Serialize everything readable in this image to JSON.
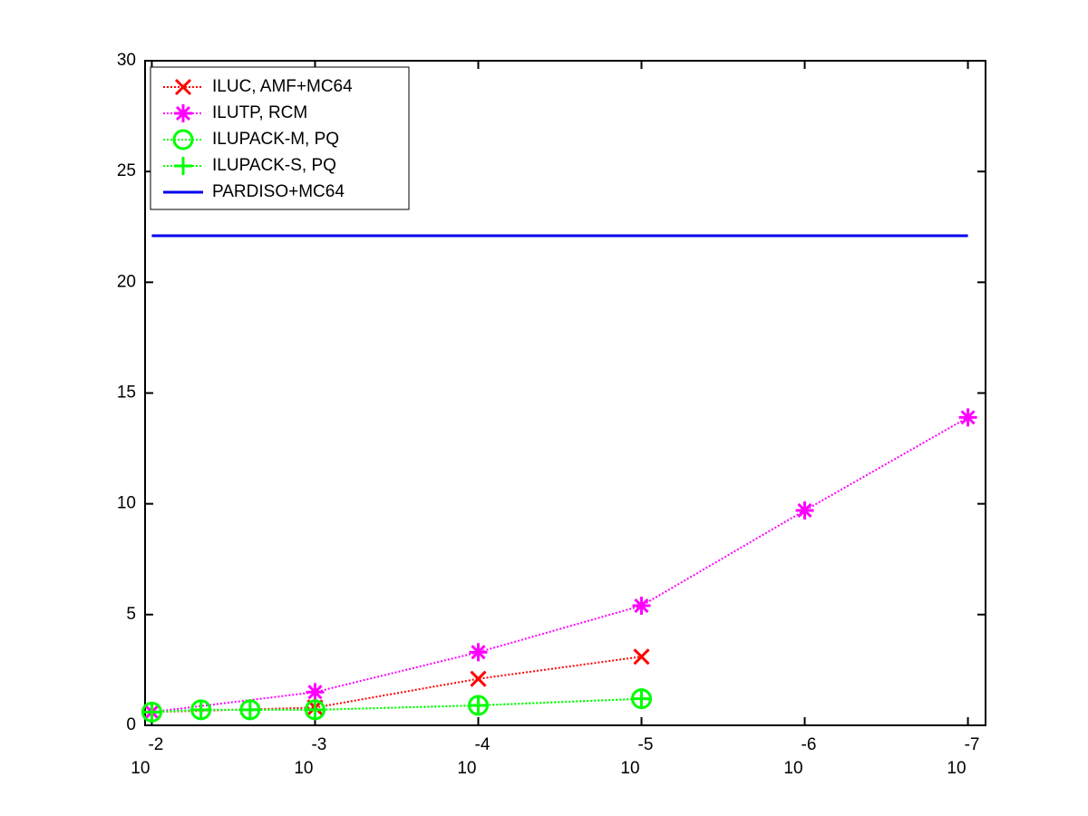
{
  "chart_data": {
    "type": "line",
    "xscale": "log",
    "xlim": [
      0.011,
      7.8e-08
    ],
    "ylim": [
      0,
      30
    ],
    "xticks": [
      {
        "value": 0.01,
        "label": "10",
        "exponent": "-2"
      },
      {
        "value": 0.001,
        "label": "10",
        "exponent": "-3"
      },
      {
        "value": 0.0001,
        "label": "10",
        "exponent": "-4"
      },
      {
        "value": 1e-05,
        "label": "10",
        "exponent": "-5"
      },
      {
        "value": 1e-06,
        "label": "10",
        "exponent": "-6"
      },
      {
        "value": 1e-07,
        "label": "10",
        "exponent": "-7"
      }
    ],
    "yticks": [
      0,
      5,
      10,
      15,
      20,
      25,
      30
    ],
    "legend": "upper left",
    "series": [
      {
        "name": "ILUC, AMF+MC64",
        "color": "#ff0000",
        "marker": "x",
        "linestyle": "dotted",
        "x": [
          0.01,
          0.001,
          0.0001,
          1e-05
        ],
        "values": [
          0.6,
          0.8,
          2.1,
          3.1
        ]
      },
      {
        "name": "ILUTP, RCM",
        "color": "#ff00ff",
        "marker": "*",
        "linestyle": "dotted",
        "x": [
          0.01,
          0.001,
          0.0001,
          1e-05,
          1e-06,
          1e-07
        ],
        "values": [
          0.6,
          1.5,
          3.3,
          5.4,
          9.7,
          13.9
        ]
      },
      {
        "name": "ILUPACK-M, PQ",
        "color": "#00ff00",
        "marker": "o",
        "linestyle": "dotted",
        "x": [
          0.01,
          0.005,
          0.0025,
          0.001,
          0.0001,
          1e-05
        ],
        "values": [
          0.6,
          0.7,
          0.7,
          0.7,
          0.9,
          1.2
        ]
      },
      {
        "name": "ILUPACK-S, PQ",
        "color": "#00ff00",
        "marker": "+",
        "linestyle": "dotted",
        "x": [
          0.01,
          0.005,
          0.0025,
          0.001,
          0.0001,
          1e-05
        ],
        "values": [
          0.6,
          0.7,
          0.7,
          0.7,
          0.9,
          1.2
        ]
      },
      {
        "name": "PARDISO+MC64",
        "color": "#0000ee",
        "marker": "none",
        "linestyle": "solid",
        "x": [
          0.01,
          1e-07
        ],
        "values": [
          22.1,
          22.1
        ]
      }
    ]
  }
}
